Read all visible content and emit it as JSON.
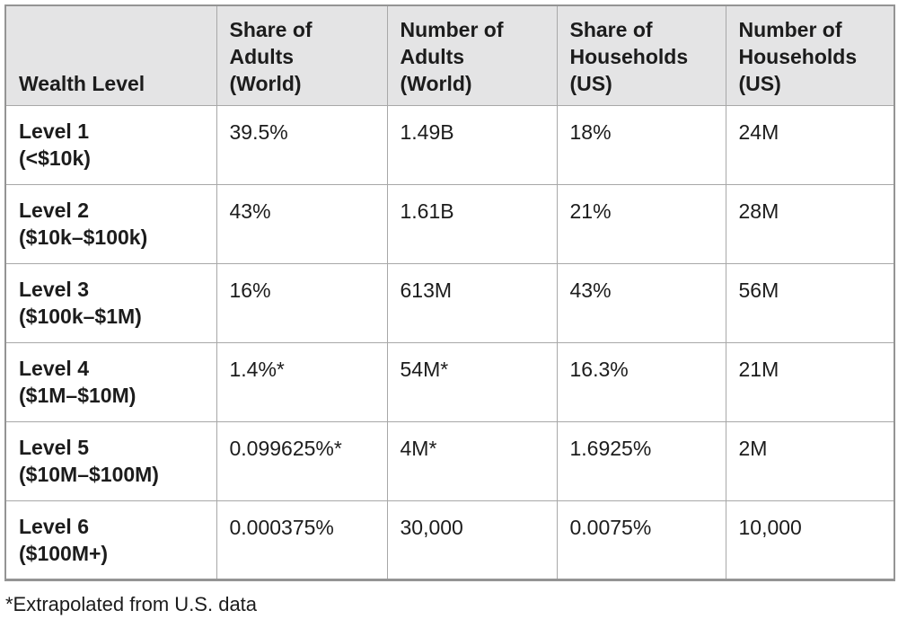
{
  "ui": {
    "headers": [
      "Wealth Level",
      "Share of\nAdults\n(World)",
      "Number of\nAdults\n(World)",
      "Share of\nHouseholds\n(US)",
      "Number of\nHouseholds\n(US)"
    ],
    "rows": [
      {
        "level": "Level 1",
        "range": "(<$10k)",
        "share_adults_world": "39.5%",
        "num_adults_world": "1.49B",
        "share_households_us": "18%",
        "num_households_us": "24M"
      },
      {
        "level": "Level 2",
        "range": "($10k–$100k)",
        "share_adults_world": "43%",
        "num_adults_world": "1.61B",
        "share_households_us": "21%",
        "num_households_us": "28M"
      },
      {
        "level": "Level 3",
        "range": "($100k–$1M)",
        "share_adults_world": "16%",
        "num_adults_world": "613M",
        "share_households_us": "43%",
        "num_households_us": "56M"
      },
      {
        "level": "Level 4",
        "range": "($1M–$10M)",
        "share_adults_world": "1.4%*",
        "num_adults_world": "54M*",
        "share_households_us": "16.3%",
        "num_households_us": "21M"
      },
      {
        "level": "Level 5",
        "range": "($10M–$100M)",
        "share_adults_world": "0.099625%*",
        "num_adults_world": "4M*",
        "share_households_us": "1.6925%",
        "num_households_us": "2M"
      },
      {
        "level": "Level 6",
        "range": "($100M+)",
        "share_adults_world": "0.000375%",
        "num_adults_world": "30,000",
        "share_households_us": "0.0075%",
        "num_households_us": "10,000"
      }
    ],
    "footnote": "*Extrapolated from U.S. data"
  },
  "colors": {
    "header_bg": "#e4e4e5",
    "border_inner": "#a8a8a8",
    "border_outer": "#949494",
    "text": "#1c1c1c"
  },
  "chart_data": {
    "type": "table",
    "title": "",
    "columns": [
      "Wealth Level",
      "Share of Adults (World)",
      "Number of Adults (World)",
      "Share of Households (US)",
      "Number of Households (US)"
    ],
    "rows": [
      [
        "Level 1 (<$10k)",
        "39.5%",
        "1.49B",
        "18%",
        "24M"
      ],
      [
        "Level 2 ($10k–$100k)",
        "43%",
        "1.61B",
        "21%",
        "28M"
      ],
      [
        "Level 3 ($100k–$1M)",
        "16%",
        "613M",
        "43%",
        "56M"
      ],
      [
        "Level 4 ($1M–$10M)",
        "1.4%*",
        "54M*",
        "16.3%",
        "21M"
      ],
      [
        "Level 5 ($10M–$100M)",
        "0.099625%*",
        "4M*",
        "1.6925%",
        "2M"
      ],
      [
        "Level 6 ($100M+)",
        "0.000375%",
        "30,000",
        "0.0075%",
        "10,000"
      ]
    ],
    "footnote": "*Extrapolated from U.S. data"
  }
}
